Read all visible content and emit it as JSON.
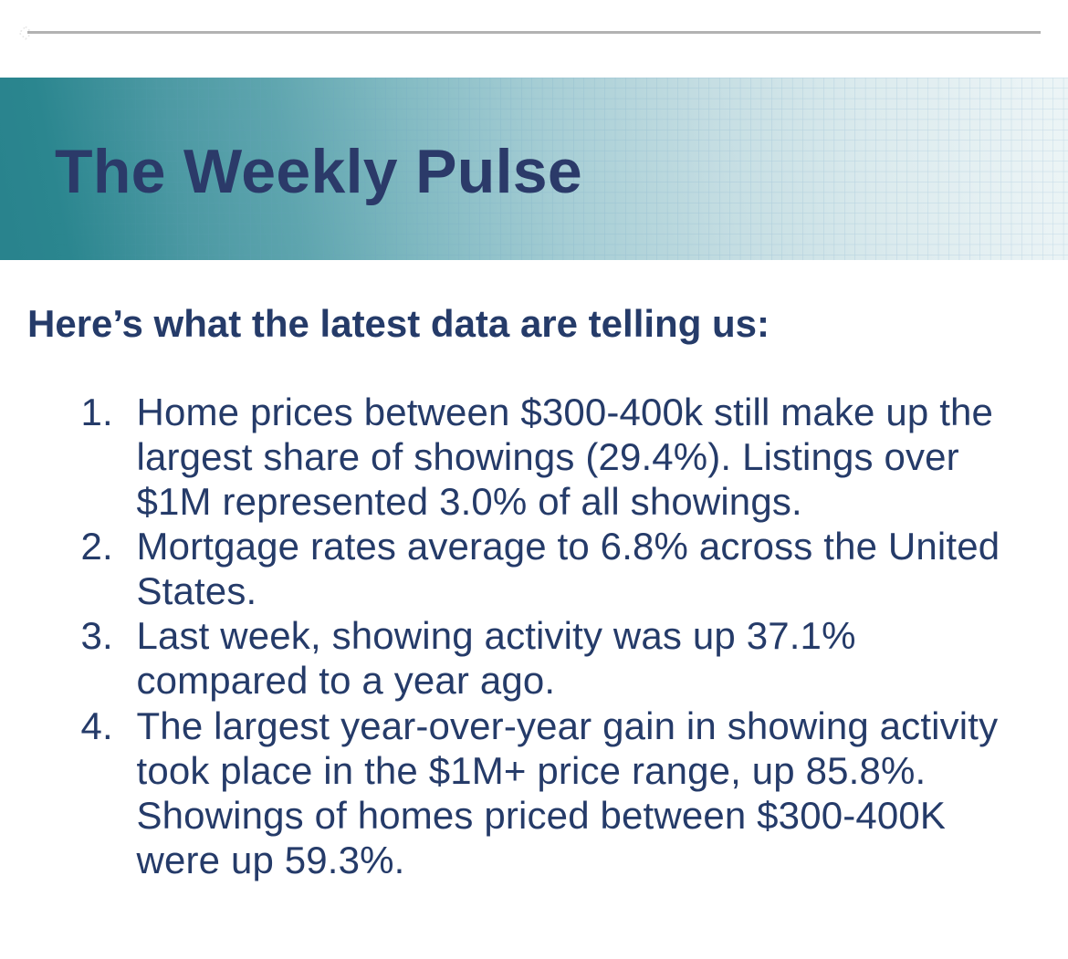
{
  "slide": {
    "title": "The Weekly Pulse",
    "intro_heading": "Here’s what the latest data are telling us:",
    "key_points": [
      {
        "number": "1.",
        "text": "Home prices between $300-400k still make up the largest share of showings (29.4%). Listings over $1M represented 3.0% of all showings.",
        "lines": [
          "Home prices between $300-400k still make up the",
          "largest share of showings (29.4%). Listings over",
          "$1M represented 3.0% of all showings."
        ]
      },
      {
        "number": "2.",
        "text": "Mortgage rates average to 6.8% across the United States.",
        "lines": [
          "Mortgage rates average to 6.8% across the United",
          "States."
        ]
      },
      {
        "number": "3.",
        "text": "Last week, showing activity was up 37.1% compared to a year ago.",
        "lines": [
          "Last week, showing activity was up 37.1%",
          "compared to a year ago."
        ]
      },
      {
        "number": "4.",
        "text": "The largest year-over-year gain in showing activity took place in the $1M+ price range, up 85.8%. Showings of homes priced between $300-400K were up 59.3%.",
        "lines": [
          "The largest year-over-year gain in showing activity",
          "took place in the $1M+ price range, up 85.8%.",
          "Showings of homes priced between $300-400K",
          "were up 59.3%."
        ]
      }
    ],
    "colors": {
      "text_navy": "#253b69",
      "banner_teal": "#29848e",
      "banner_light": "#eff6f7",
      "rule_gray": "#b2b2b2",
      "background": "#ffffff"
    }
  }
}
